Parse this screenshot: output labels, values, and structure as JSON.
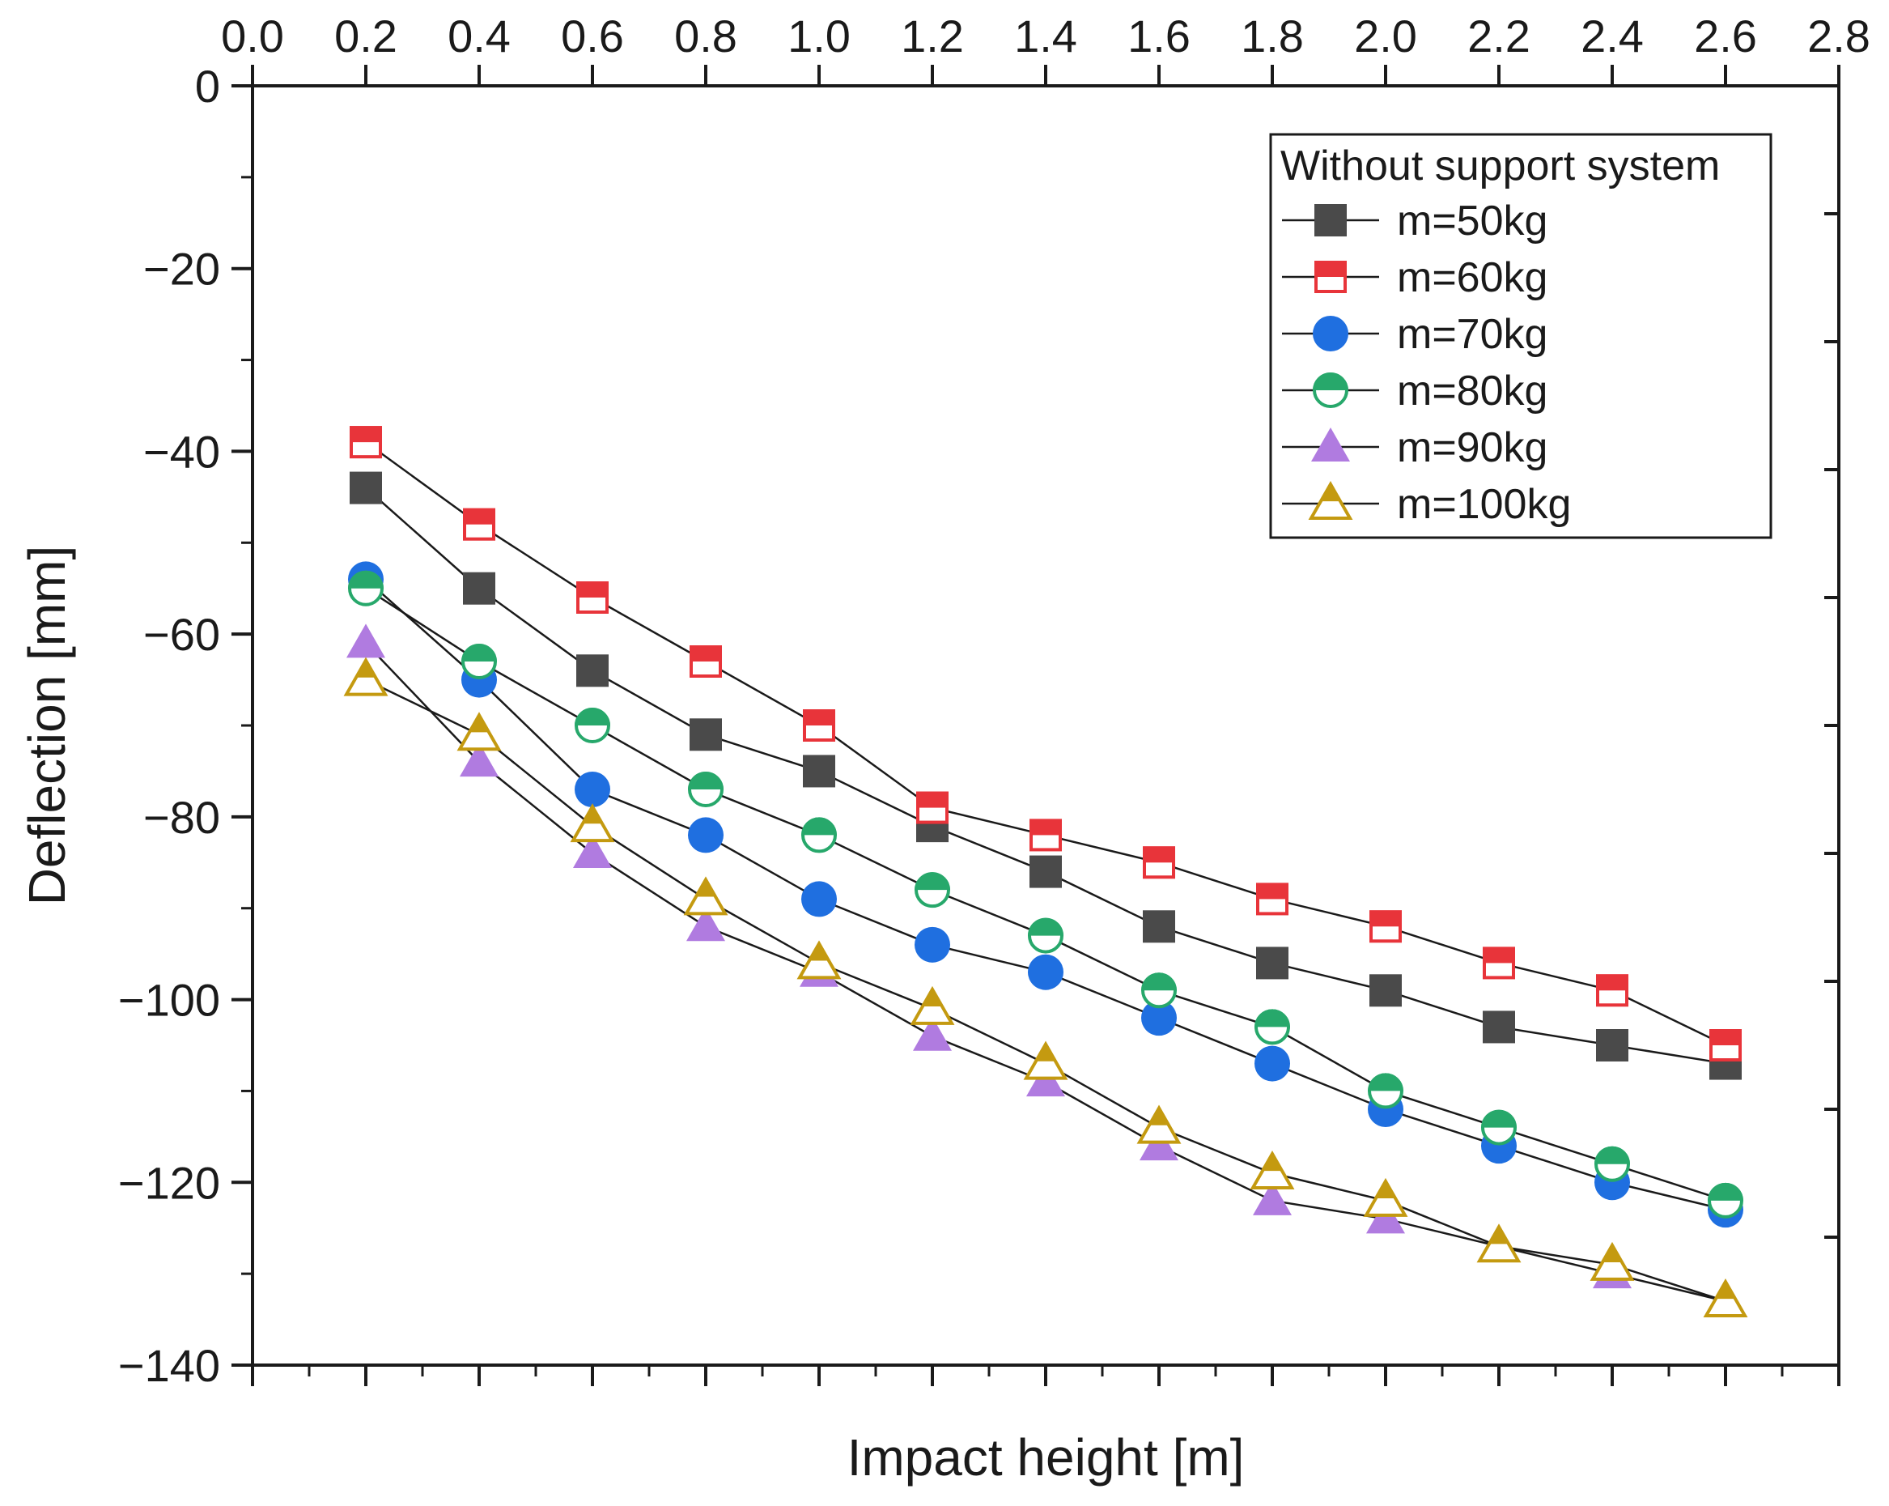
{
  "chart_data": {
    "type": "line",
    "title": "",
    "xlabel": "Impact height [m]",
    "ylabel": "Deflection [mm]",
    "xlim": [
      0.0,
      2.8
    ],
    "ylim": [
      -140,
      0
    ],
    "xticks": [
      "0.0",
      "0.2",
      "0.4",
      "0.6",
      "0.8",
      "1.0",
      "1.2",
      "1.4",
      "1.6",
      "1.8",
      "2.0",
      "2.2",
      "2.4",
      "2.6",
      "2.8"
    ],
    "yticks": [
      "0",
      "−20",
      "−40",
      "−60",
      "−80",
      "−100",
      "−120",
      "−140"
    ],
    "x_axis_position": "top",
    "grid": false,
    "legend": {
      "title": "Without support system",
      "position": "top-right"
    },
    "x": [
      0.2,
      0.4,
      0.6,
      0.8,
      1.0,
      1.2,
      1.4,
      1.6,
      1.8,
      2.0,
      2.2,
      2.4,
      2.6
    ],
    "series": [
      {
        "name": "m=50kg",
        "marker": "square-filled",
        "color": "#4a4a4a",
        "values": [
          -44,
          -55,
          -64,
          -71,
          -75,
          -81,
          -86,
          -92,
          -96,
          -99,
          -103,
          -105,
          -107
        ]
      },
      {
        "name": "m=60kg",
        "marker": "square-half",
        "color": "#e8343a",
        "values": [
          -39,
          -48,
          -56,
          -63,
          -70,
          -79,
          -82,
          -85,
          -89,
          -92,
          -96,
          -99,
          -105
        ]
      },
      {
        "name": "m=70kg",
        "marker": "circle-filled",
        "color": "#1f6fe0",
        "values": [
          -54,
          -65,
          -77,
          -82,
          -89,
          -94,
          -97,
          -102,
          -107,
          -112,
          -116,
          -120,
          -123
        ]
      },
      {
        "name": "m=80kg",
        "marker": "circle-half",
        "color": "#27a86b",
        "values": [
          -55,
          -63,
          -70,
          -77,
          -82,
          -88,
          -93,
          -99,
          -103,
          -110,
          -114,
          -118,
          -122
        ]
      },
      {
        "name": "m=90kg",
        "marker": "triangle-filled",
        "color": "#b07be0",
        "values": [
          -61,
          -74,
          -84,
          -92,
          -97,
          -104,
          -109,
          -116,
          -122,
          -124,
          -127,
          -130,
          -133
        ]
      },
      {
        "name": "m=100kg",
        "marker": "triangle-half",
        "color": "#c49a10",
        "values": [
          -65,
          -71,
          -81,
          -89,
          -96,
          -101,
          -107,
          -114,
          -119,
          -122,
          -127,
          -129,
          -133
        ]
      }
    ]
  }
}
